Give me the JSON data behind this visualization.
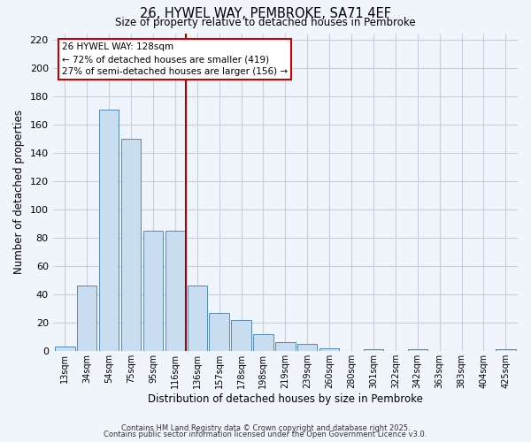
{
  "title": "26, HYWEL WAY, PEMBROKE, SA71 4EF",
  "subtitle": "Size of property relative to detached houses in Pembroke",
  "xlabel": "Distribution of detached houses by size in Pembroke",
  "ylabel": "Number of detached properties",
  "bar_labels": [
    "13sqm",
    "34sqm",
    "54sqm",
    "75sqm",
    "95sqm",
    "116sqm",
    "136sqm",
    "157sqm",
    "178sqm",
    "198sqm",
    "219sqm",
    "239sqm",
    "260sqm",
    "280sqm",
    "301sqm",
    "322sqm",
    "342sqm",
    "363sqm",
    "383sqm",
    "404sqm",
    "425sqm"
  ],
  "bar_values": [
    3,
    46,
    171,
    150,
    85,
    85,
    46,
    27,
    22,
    12,
    6,
    5,
    2,
    0,
    1,
    0,
    1,
    0,
    0,
    0,
    1
  ],
  "bar_color": "#c8ddf0",
  "bar_edge_color": "#5588bb",
  "vline_x": 5.5,
  "vline_color": "#aa0000",
  "annotation_title": "26 HYWEL WAY: 128sqm",
  "annotation_line1": "← 72% of detached houses are smaller (419)",
  "annotation_line2": "27% of semi-detached houses are larger (156) →",
  "annotation_box_color": "#ffffff",
  "annotation_box_edge": "#cc0000",
  "ylim": [
    0,
    225
  ],
  "yticks": [
    0,
    20,
    40,
    60,
    80,
    100,
    120,
    140,
    160,
    180,
    200,
    220
  ],
  "footer_line1": "Contains HM Land Registry data © Crown copyright and database right 2025.",
  "footer_line2": "Contains public sector information licensed under the Open Government Licence v3.0.",
  "bg_color": "#f0f4fb",
  "grid_color": "#c8d0e0"
}
